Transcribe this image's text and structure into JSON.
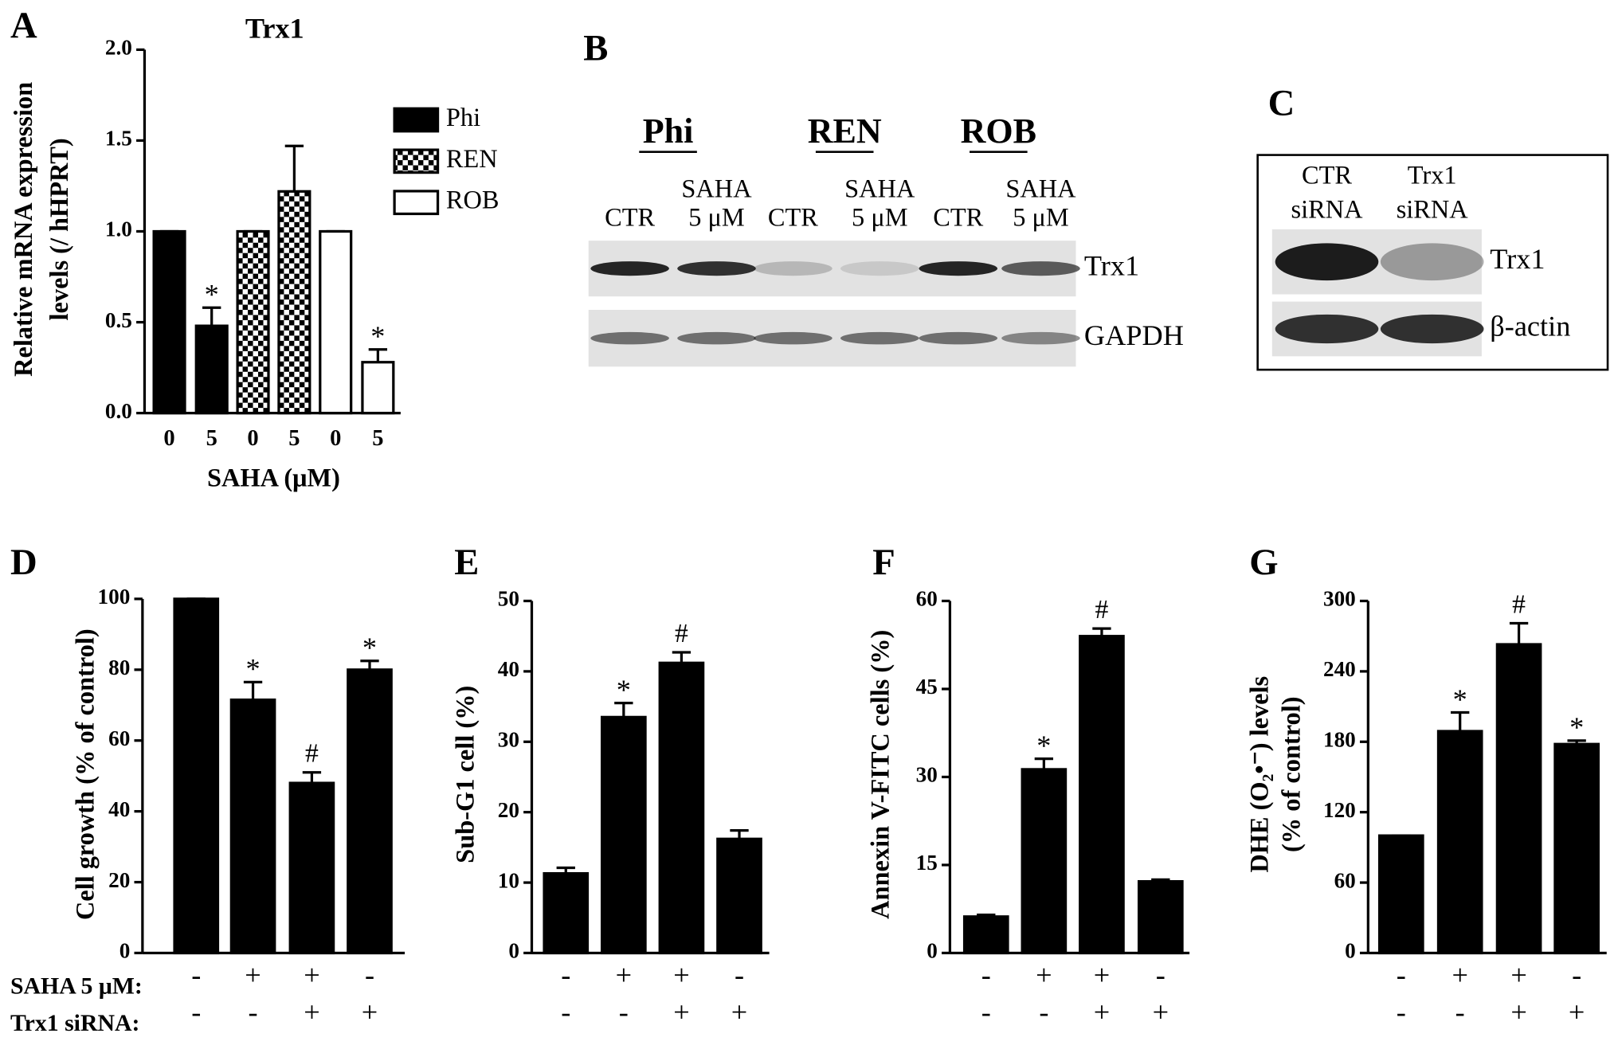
{
  "chart_data": [
    {
      "type": "bar",
      "label": "A",
      "title": "Trx1",
      "ylabel": [
        "Relative mRNA expression",
        "levels (/ hHPRT)"
      ],
      "xlabel": "SAHA (μM)",
      "categories": [
        "0",
        "5",
        "0",
        "5",
        "0",
        "5"
      ],
      "series": [
        {
          "name": "Phi",
          "fill": "solid",
          "values": [
            1.0,
            0.48,
            null,
            null,
            null,
            null
          ],
          "errors": [
            0,
            0.1,
            null,
            null,
            null,
            null
          ]
        },
        {
          "name": "REN",
          "fill": "checker",
          "values": [
            null,
            null,
            1.0,
            1.22,
            null,
            null
          ],
          "errors": [
            null,
            null,
            0,
            0.25,
            null,
            null
          ]
        },
        {
          "name": "ROB",
          "fill": "open",
          "values": [
            null,
            null,
            null,
            null,
            1.0,
            0.28
          ],
          "errors": [
            null,
            null,
            null,
            null,
            0,
            0.07
          ]
        }
      ],
      "annotations": [
        null,
        "*",
        null,
        null,
        null,
        "*"
      ],
      "ylim": [
        0,
        2.0
      ],
      "yticks": [
        {
          "value": 0,
          "label": "0.0"
        },
        0.5,
        {
          "value": 1,
          "label": "1.0"
        },
        1.5,
        {
          "value": 2,
          "label": "2.0"
        }
      ],
      "legend": "right"
    },
    {
      "type": "bar",
      "label": "D",
      "ylabel": [
        "Cell growth (% of control)"
      ],
      "values": [
        100,
        71.5,
        48,
        80
      ],
      "errors": [
        0,
        5,
        3,
        2.5
      ],
      "annotations": [
        null,
        "*",
        "#",
        "*"
      ],
      "conditions": [
        {
          "name": "SAHA 5 μM:",
          "values": [
            "-",
            "+",
            "+",
            "-"
          ]
        },
        {
          "name": "Trx1 siRNA:",
          "values": [
            "-",
            "-",
            "+",
            "+"
          ]
        }
      ],
      "ylim": [
        0,
        100
      ],
      "yticks": [
        0,
        20,
        40,
        60,
        80,
        100
      ]
    },
    {
      "type": "bar",
      "label": "E",
      "ylabel": [
        "Sub-G1 cell (%)"
      ],
      "values": [
        11.3,
        33.5,
        41.2,
        16.2
      ],
      "errors": [
        0.8,
        2,
        1.5,
        1.2
      ],
      "annotations": [
        null,
        "*",
        "#",
        null
      ],
      "conditions": [
        {
          "values": [
            "-",
            "+",
            "+",
            "-"
          ]
        },
        {
          "values": [
            "-",
            "-",
            "+",
            "+"
          ]
        }
      ],
      "ylim": [
        0,
        50
      ],
      "yticks": [
        0,
        10,
        20,
        30,
        40,
        50
      ]
    },
    {
      "type": "bar",
      "label": "F",
      "ylabel": [
        "Annexin V-FITC cells (%)"
      ],
      "values": [
        6.2,
        31.3,
        54,
        12.2
      ],
      "errors": [
        0.3,
        1.8,
        1.3,
        0.3
      ],
      "annotations": [
        null,
        "*",
        "#",
        null
      ],
      "conditions": [
        {
          "values": [
            "-",
            "+",
            "+",
            "-"
          ]
        },
        {
          "values": [
            "-",
            "-",
            "+",
            "+"
          ]
        }
      ],
      "ylim": [
        0,
        60
      ],
      "yticks": [
        0,
        15,
        30,
        45,
        60
      ]
    },
    {
      "type": "bar",
      "label": "G",
      "ylabel": [
        "DHE (O₂•⁻) levels",
        "(% of control)"
      ],
      "values": [
        100,
        189,
        263,
        178
      ],
      "errors": [
        0,
        16,
        18,
        3
      ],
      "annotations": [
        null,
        "*",
        "#",
        "*"
      ],
      "conditions": [
        {
          "values": [
            "-",
            "+",
            "+",
            "-"
          ]
        },
        {
          "values": [
            "-",
            "-",
            "+",
            "+"
          ]
        }
      ],
      "ylim": [
        0,
        300
      ],
      "yticks": [
        0,
        60,
        120,
        180,
        240,
        300
      ]
    }
  ],
  "blots": [
    {
      "label": "B",
      "groups": [
        "Phi",
        "REN",
        "ROB"
      ],
      "lanes": [
        [
          "CTR"
        ],
        [
          "SAHA",
          "5 μM"
        ],
        [
          "CTR"
        ],
        [
          "SAHA",
          "5 μM"
        ],
        [
          "CTR"
        ],
        [
          "SAHA",
          "5 μM"
        ]
      ],
      "proteins": [
        "Trx1",
        "GAPDH"
      ]
    },
    {
      "label": "C",
      "lanes": [
        [
          "CTR",
          "siRNA"
        ],
        [
          "Trx1",
          "siRNA"
        ]
      ],
      "proteins": [
        "Trx1",
        "β-actin"
      ]
    }
  ]
}
